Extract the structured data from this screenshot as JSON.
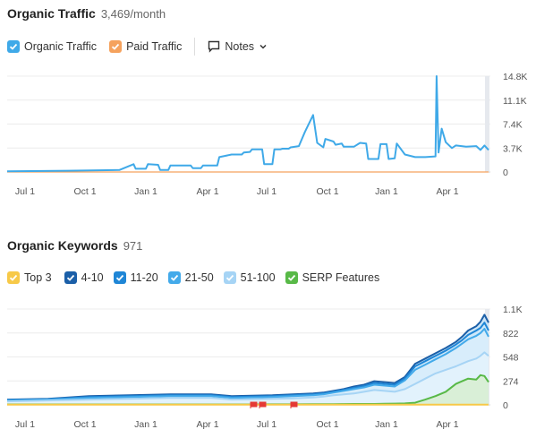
{
  "traffic_section": {
    "title": "Organic Traffic",
    "subtitle": "3,469/month",
    "legend": [
      {
        "label": "Organic Traffic",
        "color": "#3fa9e8"
      },
      {
        "label": "Paid Traffic",
        "color": "#f5a25d"
      }
    ],
    "notes_label": "Notes"
  },
  "keywords_section": {
    "title": "Organic Keywords",
    "subtitle": "971",
    "legend": [
      {
        "label": "Top 3",
        "color": "#f7c948"
      },
      {
        "label": "4-10",
        "color": "#1b5fa8"
      },
      {
        "label": "11-20",
        "color": "#1f86d6"
      },
      {
        "label": "21-50",
        "color": "#43aaea"
      },
      {
        "label": "51-100",
        "color": "#a6d4f5"
      },
      {
        "label": "SERP Features",
        "color": "#58b947"
      }
    ]
  },
  "chart_data": [
    {
      "type": "line",
      "title": "Organic Traffic",
      "x_tick_labels": [
        "Jul 1",
        "Oct 1",
        "Jan 1",
        "Apr 1",
        "Jul 1",
        "Oct 1",
        "Jan 1",
        "Apr 1"
      ],
      "y_tick_labels": [
        "0",
        "3.7K",
        "7.4K",
        "11.1K",
        "14.8K"
      ],
      "y_ticks": [
        0,
        3700,
        7400,
        11100,
        14800
      ],
      "ylim": [
        0,
        14800
      ],
      "x_range": [
        0,
        23.6
      ],
      "grid": true,
      "series": [
        {
          "name": "Organic Traffic",
          "color": "#3fa9e8",
          "x": [
            0,
            3,
            5.5,
            6.2,
            6.3,
            6.8,
            6.9,
            7.4,
            7.5,
            7.9,
            8.0,
            8.5,
            9.0,
            9.1,
            9.5,
            9.6,
            10.3,
            10.4,
            11.0,
            11.5,
            11.6,
            11.9,
            12.0,
            12.5,
            12.6,
            13.0,
            13.1,
            13.4,
            13.5,
            13.8,
            13.9,
            14.3,
            14.6,
            15.0,
            15.2,
            15.5,
            15.6,
            16.0,
            16.1,
            16.4,
            16.5,
            17.0,
            17.3,
            17.6,
            17.7,
            18.2,
            18.3,
            18.6,
            18.7,
            19.0,
            19.1,
            19.5,
            20.0,
            20.5,
            21.0,
            21.05,
            21.15,
            21.3,
            21.5,
            21.8,
            22.0,
            22.5,
            23.0,
            23.2,
            23.4,
            23.6
          ],
          "y": [
            100,
            200,
            300,
            1200,
            500,
            500,
            1200,
            1100,
            300,
            300,
            1000,
            1000,
            1000,
            600,
            600,
            1000,
            1000,
            2300,
            2700,
            2700,
            3000,
            3100,
            3500,
            3500,
            1200,
            1200,
            3500,
            3500,
            3600,
            3600,
            3800,
            4000,
            6200,
            8800,
            4500,
            3800,
            5100,
            4700,
            4200,
            4400,
            3900,
            3900,
            4500,
            4400,
            2000,
            2000,
            4300,
            4300,
            2000,
            2100,
            4400,
            2700,
            2300,
            2300,
            2400,
            14800,
            3000,
            6700,
            4600,
            3700,
            4100,
            3900,
            4000,
            3400,
            4100,
            3400
          ]
        },
        {
          "name": "Paid Traffic",
          "color": "#f5a25d",
          "x": [
            0,
            23.6
          ],
          "y": [
            0,
            0
          ]
        }
      ]
    },
    {
      "type": "area",
      "title": "Organic Keywords",
      "x_tick_labels": [
        "Jul 1",
        "Oct 1",
        "Jan 1",
        "Apr 1",
        "Jul 1",
        "Oct 1",
        "Jan 1",
        "Apr 1"
      ],
      "y_tick_labels": [
        "0",
        "274",
        "548",
        "822",
        "1.1K"
      ],
      "y_ticks": [
        0,
        274,
        548,
        822,
        1096
      ],
      "ylim": [
        0,
        1096
      ],
      "x_range": [
        0,
        23.6
      ],
      "grid": true,
      "x": [
        0,
        2,
        4,
        6,
        8,
        10,
        11,
        12,
        13,
        14,
        15,
        15.5,
        16,
        16.5,
        17,
        17.5,
        18,
        18.5,
        19,
        19.5,
        20,
        20.5,
        21,
        21.5,
        22,
        22.3,
        22.6,
        23,
        23.2,
        23.4,
        23.6
      ],
      "series": [
        {
          "name": "Top 3",
          "color": "#f7c948",
          "y": [
            3,
            3,
            3,
            3,
            3,
            3,
            3,
            3,
            3,
            3,
            3,
            3,
            3,
            3,
            3,
            3,
            3,
            3,
            3,
            3,
            3,
            3,
            3,
            3,
            3,
            3,
            3,
            3,
            3,
            3,
            3
          ]
        },
        {
          "name": "SERP Features",
          "color": "#58b947",
          "y": [
            5,
            5,
            5,
            5,
            5,
            5,
            5,
            5,
            6,
            6,
            7,
            8,
            8,
            9,
            10,
            10,
            10,
            12,
            14,
            16,
            25,
            60,
            100,
            150,
            240,
            270,
            300,
            290,
            340,
            330,
            260
          ]
        },
        {
          "name": "51-100",
          "color": "#a6d4f5",
          "y": [
            40,
            50,
            60,
            70,
            80,
            80,
            60,
            65,
            70,
            75,
            85,
            95,
            110,
            120,
            130,
            150,
            170,
            160,
            150,
            180,
            240,
            300,
            360,
            400,
            440,
            470,
            500,
            530,
            560,
            600,
            560
          ]
        },
        {
          "name": "21-50",
          "color": "#43aaea",
          "y": [
            50,
            60,
            80,
            90,
            100,
            100,
            80,
            85,
            90,
            100,
            110,
            120,
            140,
            160,
            180,
            200,
            230,
            220,
            210,
            280,
            400,
            460,
            520,
            580,
            650,
            700,
            750,
            790,
            820,
            870,
            780
          ]
        },
        {
          "name": "11-20",
          "color": "#1f86d6",
          "y": [
            55,
            65,
            90,
            100,
            110,
            110,
            90,
            95,
            100,
            110,
            120,
            130,
            150,
            170,
            195,
            215,
            250,
            240,
            230,
            300,
            440,
            500,
            560,
            620,
            690,
            740,
            800,
            850,
            880,
            940,
            850
          ]
        },
        {
          "name": "4-10",
          "color": "#1b5fa8",
          "y": [
            60,
            70,
            100,
            110,
            120,
            120,
            100,
            105,
            110,
            120,
            130,
            140,
            160,
            180,
            210,
            230,
            270,
            260,
            250,
            320,
            470,
            530,
            590,
            650,
            720,
            780,
            850,
            900,
            950,
            1030,
            940
          ]
        }
      ]
    }
  ]
}
